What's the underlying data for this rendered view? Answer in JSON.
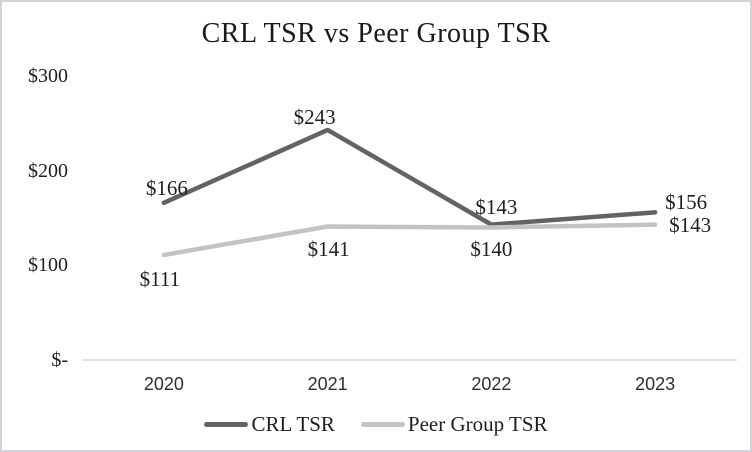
{
  "window": {
    "background_color": "#ffffff",
    "border_color": "#d2d3d7"
  },
  "chart_data": {
    "type": "line",
    "title": "CRL TSR vs Peer Group TSR",
    "categories": [
      "2020",
      "2021",
      "2022",
      "2023"
    ],
    "series": [
      {
        "name": "CRL TSR",
        "color": "#636363",
        "values": [
          166,
          243,
          143,
          156
        ],
        "labels": [
          "$166",
          "$243",
          "$143",
          "$156"
        ]
      },
      {
        "name": "Peer Group TSR",
        "color": "#c3c3c3",
        "values": [
          111,
          141,
          140,
          143
        ],
        "labels": [
          "$111",
          "$141",
          "$140",
          "$143"
        ]
      }
    ],
    "y_axis": {
      "min": 0,
      "max": 300,
      "ticks": [
        {
          "label": "$300",
          "value": 300
        },
        {
          "label": "$200",
          "value": 200
        },
        {
          "label": "$100",
          "value": 100
        },
        {
          "label": "$-",
          "value": 0
        }
      ]
    },
    "x_axis": {
      "labels": [
        "2020",
        "2021",
        "2022",
        "2023"
      ]
    },
    "axis_line_color": "#d9d9d9",
    "grid": false,
    "legend_position": "bottom"
  }
}
